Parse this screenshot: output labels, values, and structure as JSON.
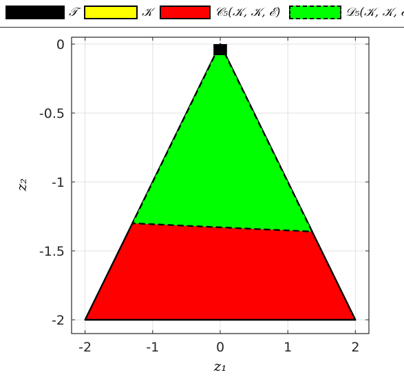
{
  "legend": [
    {
      "label": "𝒯",
      "fill": "#000000",
      "stroke": "#000000",
      "dashed": false
    },
    {
      "label": "𝒦",
      "fill": "#ffff00",
      "stroke": "#000000",
      "dashed": false
    },
    {
      "label": "𝒞₅(𝒦, 𝒦, ℰ)",
      "fill": "#ff0000",
      "stroke": "#000000",
      "dashed": false
    },
    {
      "label": "𝒟₅(𝒦, 𝒦, ℰ)",
      "fill": "#00ff00",
      "stroke": "#000000",
      "dashed": true
    }
  ],
  "chart_data": {
    "type": "area",
    "xlabel": "z₁",
    "ylabel": "z₂",
    "xlim": [
      -2.2,
      2.2
    ],
    "ylim": [
      -2.1,
      0.05
    ],
    "xticks": [
      -2,
      -1,
      0,
      1,
      2
    ],
    "yticks": [
      0,
      -0.5,
      -1,
      -1.5,
      -2
    ],
    "xtick_labels": [
      "-2",
      "-1",
      "0",
      "1",
      "2"
    ],
    "ytick_labels": [
      "0",
      "-0.5",
      "-1",
      "-1.5",
      "-2"
    ],
    "grid": true,
    "regions": [
      {
        "name": "𝒞₅(𝒦, 𝒦, ℰ)",
        "color": "#ff0000",
        "polygon": [
          [
            0,
            0
          ],
          [
            2,
            -2
          ],
          [
            -2,
            -2
          ]
        ]
      },
      {
        "name": "𝒟₅(𝒦, 𝒦, ℰ)",
        "color": "#00ff00",
        "dashed_border": true,
        "polygon": [
          [
            0,
            0
          ],
          [
            1.36,
            -1.36
          ],
          [
            -1.3,
            -1.3
          ]
        ]
      },
      {
        "name": "𝒯",
        "color": "#000000",
        "polygon": [
          [
            -0.1,
            0
          ],
          [
            0.1,
            0
          ],
          [
            0.1,
            -0.08
          ],
          [
            -0.1,
            -0.08
          ]
        ]
      }
    ]
  },
  "colors": {
    "axis": "#262626",
    "grid": "#e0e0e0",
    "background": "#ffffff"
  }
}
